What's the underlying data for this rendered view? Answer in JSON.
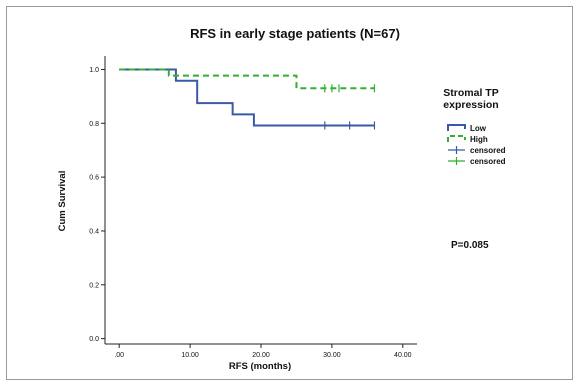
{
  "chart_data": {
    "type": "line",
    "title": "RFS in early stage patients (N=67)",
    "xlabel": "RFS (months)",
    "ylabel": "Cum Survival",
    "xlim": [
      -2,
      42
    ],
    "ylim": [
      -0.02,
      1.05
    ],
    "x_ticks": [
      0,
      10,
      20,
      30,
      40
    ],
    "x_tick_labels": [
      ".00",
      "10.00",
      "20.00",
      "30.00",
      "40.00"
    ],
    "y_ticks": [
      0.0,
      0.2,
      0.4,
      0.6,
      0.8,
      1.0
    ],
    "y_tick_labels": [
      "0.0",
      "0.2",
      "0.4",
      "0.6",
      "0.8",
      "1.0"
    ],
    "grid": false,
    "legend_title": "Stromal TP expression",
    "legend_title_lines": [
      "Stromal TP",
      "expression"
    ],
    "legend_position": "right",
    "series": [
      {
        "name": "Low",
        "color": "#3a5aa8",
        "style": "solid",
        "steps": [
          [
            0,
            1.0
          ],
          [
            8,
            0.958
          ],
          [
            11,
            0.875
          ],
          [
            16,
            0.833
          ],
          [
            19,
            0.792
          ],
          [
            36,
            0.792
          ]
        ],
        "censored_x": [
          29,
          32.5,
          36
        ]
      },
      {
        "name": "High",
        "color": "#2fb02f",
        "style": "dashed",
        "steps": [
          [
            0,
            1.0
          ],
          [
            7,
            0.977
          ],
          [
            25,
            0.93
          ],
          [
            36,
            0.93
          ]
        ],
        "censored_x": [
          29,
          30,
          31,
          36
        ]
      }
    ],
    "censored_legend": [
      {
        "label": "censored",
        "color": "#3a5aa8"
      },
      {
        "label": "censored",
        "color": "#2fb02f"
      }
    ],
    "annotation": "P=0.085"
  }
}
